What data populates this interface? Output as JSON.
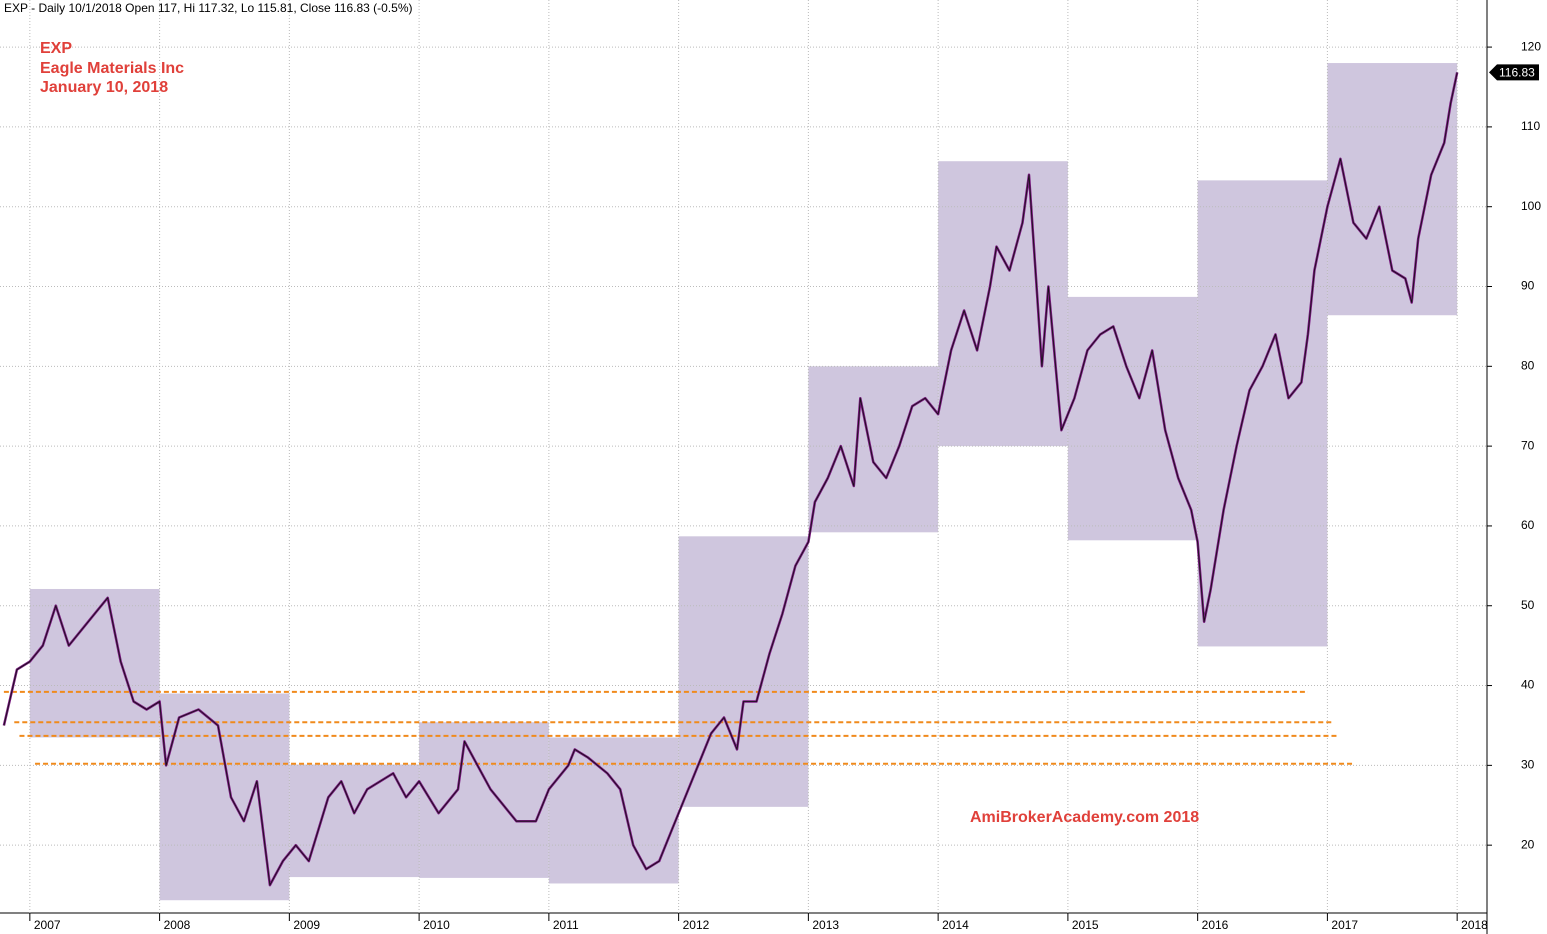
{
  "chart_data": {
    "type": "line",
    "header": "EXP - Daily 10/1/2018 Open 117, Hi 117.32, Lo 115.81, Close 116.83 (-0.5%)",
    "symbol": "EXP",
    "company": "Eagle Materials Inc",
    "date": "January 10, 2018",
    "watermark": "AmiBrokerAcademy.com 2018",
    "last_close": 116.83,
    "color": "#7a1a80",
    "box_color": "#cfc6de",
    "level_color": "#f08a1c",
    "grid": true,
    "xlim": [
      2006.77,
      2018.23
    ],
    "xticks": [
      2007,
      2008,
      2009,
      2010,
      2011,
      2012,
      2013,
      2014,
      2015,
      2016,
      2017,
      2018
    ],
    "ylim": [
      11.5,
      125.9
    ],
    "yticks": [
      20,
      30,
      40,
      50,
      60,
      70,
      80,
      90,
      100,
      110,
      120
    ],
    "x": [
      2006.8,
      2006.9,
      2007.0,
      2007.1,
      2007.2,
      2007.3,
      2007.4,
      2007.5,
      2007.6,
      2007.7,
      2007.8,
      2007.9,
      2008.0,
      2008.05,
      2008.15,
      2008.3,
      2008.45,
      2008.55,
      2008.65,
      2008.75,
      2008.85,
      2008.95,
      2009.05,
      2009.15,
      2009.3,
      2009.4,
      2009.5,
      2009.6,
      2009.7,
      2009.8,
      2009.9,
      2010.0,
      2010.15,
      2010.3,
      2010.35,
      2010.45,
      2010.55,
      2010.65,
      2010.75,
      2010.9,
      2011.0,
      2011.15,
      2011.2,
      2011.3,
      2011.45,
      2011.55,
      2011.65,
      2011.75,
      2011.85,
      2011.95,
      2012.05,
      2012.15,
      2012.25,
      2012.35,
      2012.45,
      2012.5,
      2012.6,
      2012.7,
      2012.8,
      2012.9,
      2013.0,
      2013.05,
      2013.15,
      2013.25,
      2013.35,
      2013.4,
      2013.5,
      2013.6,
      2013.7,
      2013.8,
      2013.9,
      2014.0,
      2014.1,
      2014.2,
      2014.3,
      2014.4,
      2014.45,
      2014.55,
      2014.65,
      2014.7,
      2014.75,
      2014.8,
      2014.85,
      2014.95,
      2015.05,
      2015.15,
      2015.25,
      2015.35,
      2015.45,
      2015.55,
      2015.65,
      2015.75,
      2015.85,
      2015.95,
      2016.0,
      2016.05,
      2016.1,
      2016.2,
      2016.3,
      2016.4,
      2016.5,
      2016.6,
      2016.7,
      2016.8,
      2016.85,
      2016.9,
      2017.0,
      2017.05,
      2017.1,
      2017.2,
      2017.3,
      2017.4,
      2017.5,
      2017.6,
      2017.65,
      2017.7,
      2017.8,
      2017.9,
      2017.95,
      2018.0
    ],
    "values": [
      35,
      42,
      43,
      45,
      50,
      45,
      47,
      49,
      51,
      43,
      38,
      37,
      38,
      30,
      36,
      37,
      35,
      26,
      23,
      28,
      15,
      18,
      20,
      18,
      26,
      28,
      24,
      27,
      28,
      29,
      26,
      28,
      24,
      27,
      33,
      30,
      27,
      25,
      23,
      23,
      27,
      30,
      32,
      31,
      29,
      27,
      20,
      17,
      18,
      22,
      26,
      30,
      34,
      36,
      32,
      38,
      38,
      44,
      49,
      55,
      58,
      63,
      66,
      70,
      65,
      76,
      68,
      66,
      70,
      75,
      76,
      74,
      82,
      87,
      82,
      90,
      95,
      92,
      98,
      104,
      92,
      80,
      90,
      72,
      76,
      82,
      84,
      85,
      80,
      76,
      82,
      72,
      66,
      62,
      58,
      48,
      52,
      62,
      70,
      77,
      80,
      84,
      76,
      78,
      84,
      92,
      100,
      103,
      106,
      98,
      96,
      100,
      92,
      91,
      88,
      96,
      104,
      108,
      113,
      116.83
    ],
    "ranges": [
      {
        "from": 2007,
        "to": 2008,
        "high": 52.1,
        "low": 33.5
      },
      {
        "from": 2008,
        "to": 2009,
        "high": 39.0,
        "low": 13.1
      },
      {
        "from": 2009,
        "to": 2010,
        "high": 30.1,
        "low": 16.0
      },
      {
        "from": 2010,
        "to": 2011,
        "high": 35.4,
        "low": 15.9
      },
      {
        "from": 2011,
        "to": 2012,
        "high": 33.5,
        "low": 15.2
      },
      {
        "from": 2012,
        "to": 2013,
        "high": 58.7,
        "low": 24.8
      },
      {
        "from": 2013,
        "to": 2014,
        "high": 80.0,
        "low": 59.2
      },
      {
        "from": 2014,
        "to": 2015,
        "high": 105.7,
        "low": 70.0
      },
      {
        "from": 2015,
        "to": 2016,
        "high": 88.7,
        "low": 58.2
      },
      {
        "from": 2016,
        "to": 2017,
        "high": 103.3,
        "low": 44.9
      },
      {
        "from": 2017,
        "to": 2018,
        "high": 118.0,
        "low": 86.4
      }
    ],
    "levels": [
      {
        "value": 39.2,
        "from": 2006.8,
        "to": 2016.85
      },
      {
        "value": 35.4,
        "from": 2006.88,
        "to": 2017.04
      },
      {
        "value": 33.7,
        "from": 2006.92,
        "to": 2017.09
      },
      {
        "value": 30.2,
        "from": 2007.04,
        "to": 2017.21
      }
    ]
  }
}
